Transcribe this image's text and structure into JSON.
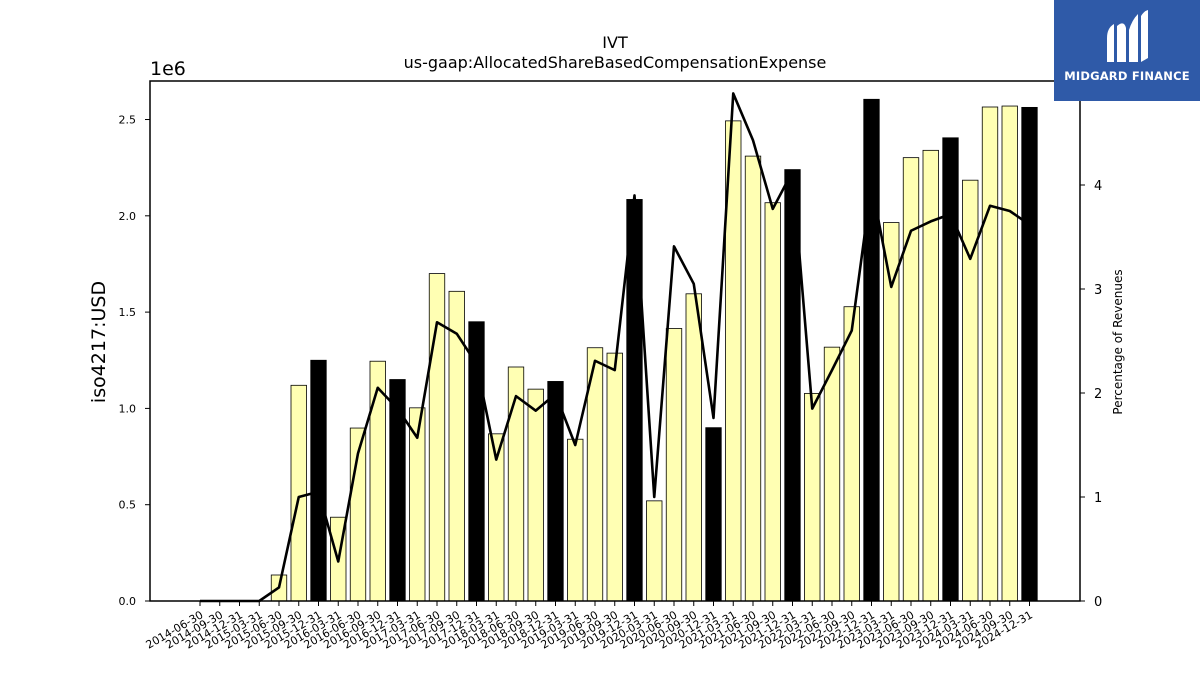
{
  "brand": {
    "name": "MIDGARD FINANCE",
    "bg_color": "#2f5aa8",
    "text_color": "#ffffff",
    "icon": "midgard-logo-icon"
  },
  "chart_data": {
    "type": "bar",
    "title": "IVT",
    "subtitle": "us-gaap:AllocatedShareBasedCompensationExpense",
    "ylabel": "iso4217:USD",
    "y_scale_label": "1e6",
    "y2label": "Percentage of Revenues",
    "ylim": [
      0,
      2700000
    ],
    "y2lim": [
      0,
      5.0
    ],
    "yticks": [
      0.0,
      0.5,
      1.0,
      1.5,
      2.0,
      2.5
    ],
    "y2ticks": [
      0,
      1,
      2,
      3,
      4
    ],
    "categories": [
      "2014-06-30",
      "2014-09-30",
      "2014-12-31",
      "2015-03-31",
      "2015-06-30",
      "2015-09-30",
      "2015-12-31",
      "2016-03-31",
      "2016-06-30",
      "2016-09-30",
      "2016-12-31",
      "2017-03-31",
      "2017-06-30",
      "2017-09-30",
      "2017-12-31",
      "2018-03-31",
      "2018-06-30",
      "2018-09-30",
      "2018-12-31",
      "2019-03-31",
      "2019-06-30",
      "2019-09-30",
      "2019-12-31",
      "2020-03-31",
      "2020-06-30",
      "2020-09-30",
      "2020-12-31",
      "2021-03-31",
      "2021-06-30",
      "2021-09-30",
      "2021-12-31",
      "2022-03-31",
      "2022-06-30",
      "2022-09-30",
      "2022-12-31",
      "2023-03-31",
      "2023-06-30",
      "2023-09-30",
      "2023-12-31",
      "2024-03-31",
      "2024-06-30",
      "2024-09-30",
      "2024-12-31"
    ],
    "series": [
      {
        "kind": "bar",
        "values": [
          0,
          0,
          0,
          0,
          135000,
          1120000,
          1250000,
          435000,
          898000,
          1245000,
          1150000,
          1003000,
          1700000,
          1608000,
          1450000,
          868000,
          1215000,
          1100000,
          1140000,
          840000,
          1315000,
          1287000,
          2085000,
          520000,
          1415000,
          1595000,
          900000,
          2493000,
          2310000,
          2068000,
          2240000,
          1078000,
          1318000,
          1528000,
          2605000,
          1965000,
          2302000,
          2340000,
          2405000,
          2185000,
          2565000,
          2570000,
          2563000
        ]
      },
      {
        "kind": "line",
        "axis": "right",
        "values": [
          0,
          0,
          0,
          0,
          0.13,
          1.0,
          1.05,
          0.38,
          1.42,
          2.05,
          1.85,
          1.57,
          2.68,
          2.57,
          2.28,
          1.36,
          1.97,
          1.83,
          1.99,
          1.5,
          2.31,
          2.22,
          3.9,
          1.0,
          3.41,
          3.05,
          1.76,
          4.88,
          4.43,
          3.77,
          4.13,
          1.85,
          2.22,
          2.6,
          4.01,
          3.02,
          3.56,
          3.65,
          3.72,
          3.29,
          3.8,
          3.75,
          3.62
        ]
      }
    ],
    "bar_fill_normal": "#ffffb3",
    "bar_fill_highlight": "#000000",
    "highlight_months": [
      "12"
    ],
    "line_color": "#000000",
    "grid": false,
    "legend": "none"
  }
}
